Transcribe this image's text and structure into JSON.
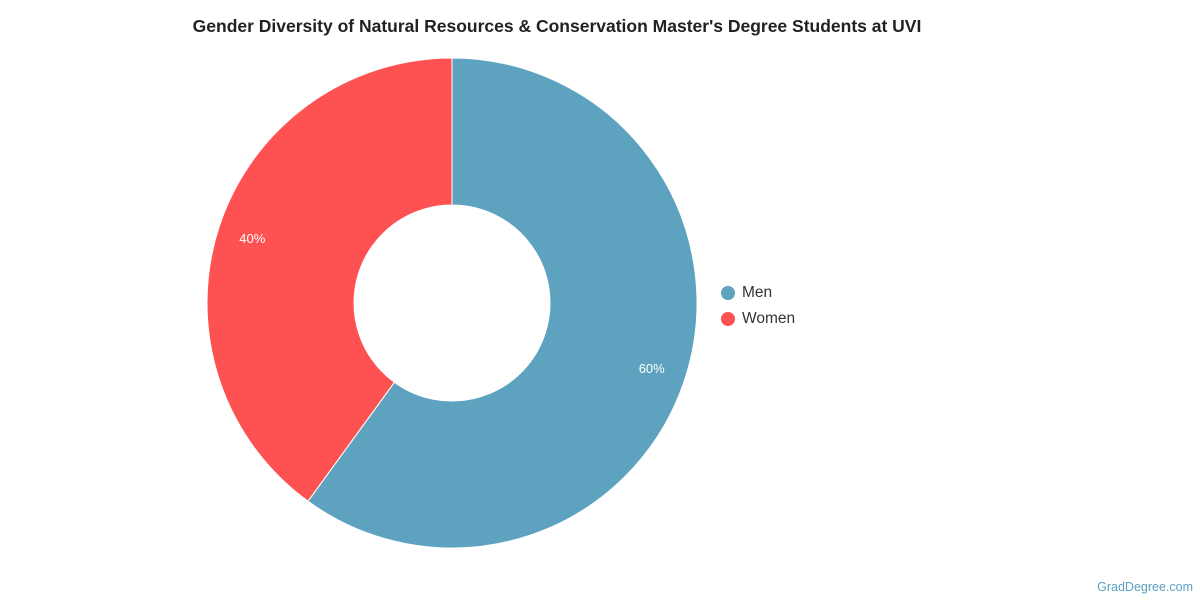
{
  "chart_data": {
    "type": "pie",
    "title": "Gender Diversity of Natural Resources & Conservation Master's Degree Students at UVI",
    "categories": [
      "Men",
      "Women"
    ],
    "values": [
      60,
      40
    ],
    "labels": [
      "60%",
      "40%"
    ],
    "colors": [
      "#5da2bf",
      "#fe5252"
    ],
    "donut": true,
    "legend_position": "right"
  },
  "watermark": "GradDegree.com"
}
